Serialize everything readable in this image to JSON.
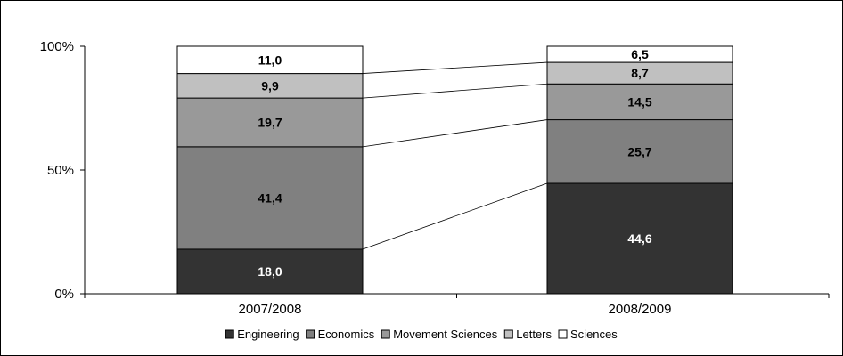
{
  "chart_data": {
    "type": "bar",
    "stacked": true,
    "percent": true,
    "categories": [
      "2007/2008",
      "2008/2009"
    ],
    "series": [
      {
        "name": "Engineering",
        "values": [
          18.0,
          44.6
        ],
        "labels": [
          "18,0",
          "44,6"
        ],
        "color": "#333333",
        "label_color": "#ffffff"
      },
      {
        "name": "Economics",
        "values": [
          41.4,
          25.7
        ],
        "labels": [
          "41,4",
          "25,7"
        ],
        "color": "#808080",
        "label_color": "#000000"
      },
      {
        "name": "Movement Sciences",
        "values": [
          19.7,
          14.5
        ],
        "labels": [
          "19,7",
          "14,5"
        ],
        "color": "#999999",
        "label_color": "#000000"
      },
      {
        "name": "Letters",
        "values": [
          9.9,
          8.7
        ],
        "labels": [
          "9,9",
          "8,7"
        ],
        "color": "#c0c0c0",
        "label_color": "#000000"
      },
      {
        "name": "Sciences",
        "values": [
          11.0,
          6.5
        ],
        "labels": [
          "11,0",
          "6,5"
        ],
        "color": "#ffffff",
        "label_color": "#000000"
      }
    ],
    "y_ticks": [
      "0%",
      "50%",
      "100%"
    ],
    "ylim": [
      0,
      100
    ],
    "grid": false,
    "series_lines": true,
    "legend_position": "bottom",
    "title": "",
    "xlabel": "",
    "ylabel": ""
  }
}
